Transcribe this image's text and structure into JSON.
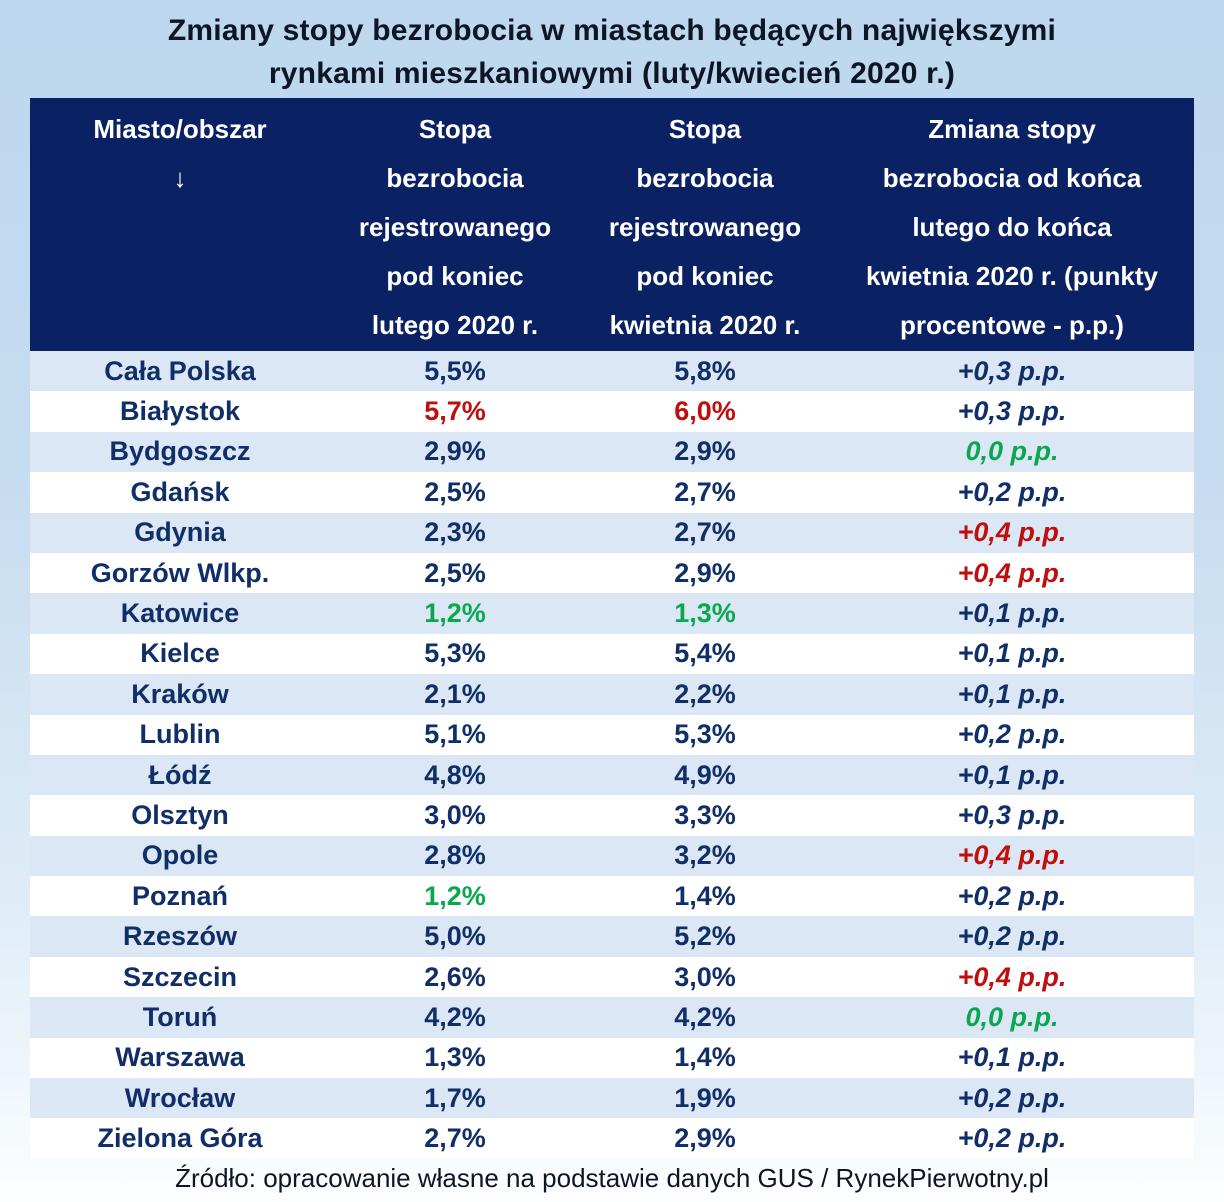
{
  "title": "Zmiany stopy bezrobocia w miastach będących największymi\nrynkami mieszkaniowymi (luty/kwiecień 2020 r.)",
  "header": {
    "city": "Miasto/obszar\n↓",
    "feb": "Stopa\nbezrobocia\nrejestrowanego\npod koniec\nlutego 2020 r.",
    "apr": "Stopa\nbezrobocia\nrejestrowanego\npod koniec\nkwietnia 2020 r.",
    "change": "Zmiana stopy\nbezrobocia od końca\nlutego do końca\nkwietnia 2020 r. (punkty\nprocentowe - p.p.)"
  },
  "colors": {
    "header_bg": "#0a2263",
    "stripe_row_bg": "#dbe7f4",
    "plain_row_bg": "#ffffff",
    "navy_text": "#102e68",
    "red_text": "#c00e0e",
    "green_text": "#0ba750",
    "page_bg_top": "#bdd7ee"
  },
  "chart_data": {
    "type": "table",
    "title": "Zmiany stopy bezrobocia w miastach będących największymi rynkami mieszkaniowymi (luty/kwiecień 2020 r.)",
    "columns": [
      "Miasto/obszar ↓",
      "Stopa bezrobocia rejestrowanego pod koniec lutego 2020 r.",
      "Stopa bezrobocia rejestrowanego pod koniec kwietnia 2020 r.",
      "Zmiana stopy bezrobocia od końca lutego do końca kwietnia 2020 r. (punkty procentowe - p.p.)"
    ],
    "rows": [
      {
        "city": "Cała Polska",
        "feb": "5,5%",
        "apr": "5,8%",
        "change": "+0,3 p.p.",
        "feb_color": "navy",
        "apr_color": "navy",
        "change_color": "navy"
      },
      {
        "city": "Białystok",
        "feb": "5,7%",
        "apr": "6,0%",
        "change": "+0,3 p.p.",
        "feb_color": "red",
        "apr_color": "red",
        "change_color": "navy"
      },
      {
        "city": "Bydgoszcz",
        "feb": "2,9%",
        "apr": "2,9%",
        "change": "0,0 p.p.",
        "feb_color": "navy",
        "apr_color": "navy",
        "change_color": "green"
      },
      {
        "city": "Gdańsk",
        "feb": "2,5%",
        "apr": "2,7%",
        "change": "+0,2 p.p.",
        "feb_color": "navy",
        "apr_color": "navy",
        "change_color": "navy"
      },
      {
        "city": "Gdynia",
        "feb": "2,3%",
        "apr": "2,7%",
        "change": "+0,4 p.p.",
        "feb_color": "navy",
        "apr_color": "navy",
        "change_color": "red"
      },
      {
        "city": "Gorzów Wlkp.",
        "feb": "2,5%",
        "apr": "2,9%",
        "change": "+0,4 p.p.",
        "feb_color": "navy",
        "apr_color": "navy",
        "change_color": "red"
      },
      {
        "city": "Katowice",
        "feb": "1,2%",
        "apr": "1,3%",
        "change": "+0,1 p.p.",
        "feb_color": "green",
        "apr_color": "green",
        "change_color": "navy"
      },
      {
        "city": "Kielce",
        "feb": "5,3%",
        "apr": "5,4%",
        "change": "+0,1 p.p.",
        "feb_color": "navy",
        "apr_color": "navy",
        "change_color": "navy"
      },
      {
        "city": "Kraków",
        "feb": "2,1%",
        "apr": "2,2%",
        "change": "+0,1 p.p.",
        "feb_color": "navy",
        "apr_color": "navy",
        "change_color": "navy"
      },
      {
        "city": "Lublin",
        "feb": "5,1%",
        "apr": "5,3%",
        "change": "+0,2 p.p.",
        "feb_color": "navy",
        "apr_color": "navy",
        "change_color": "navy"
      },
      {
        "city": "Łódź",
        "feb": "4,8%",
        "apr": "4,9%",
        "change": "+0,1 p.p.",
        "feb_color": "navy",
        "apr_color": "navy",
        "change_color": "navy"
      },
      {
        "city": "Olsztyn",
        "feb": "3,0%",
        "apr": "3,3%",
        "change": "+0,3 p.p.",
        "feb_color": "navy",
        "apr_color": "navy",
        "change_color": "navy"
      },
      {
        "city": "Opole",
        "feb": "2,8%",
        "apr": "3,2%",
        "change": "+0,4 p.p.",
        "feb_color": "navy",
        "apr_color": "navy",
        "change_color": "red"
      },
      {
        "city": "Poznań",
        "feb": "1,2%",
        "apr": "1,4%",
        "change": "+0,2 p.p.",
        "feb_color": "green",
        "apr_color": "navy",
        "change_color": "navy"
      },
      {
        "city": "Rzeszów",
        "feb": "5,0%",
        "apr": "5,2%",
        "change": "+0,2 p.p.",
        "feb_color": "navy",
        "apr_color": "navy",
        "change_color": "navy"
      },
      {
        "city": "Szczecin",
        "feb": "2,6%",
        "apr": "3,0%",
        "change": "+0,4 p.p.",
        "feb_color": "navy",
        "apr_color": "navy",
        "change_color": "red"
      },
      {
        "city": "Toruń",
        "feb": "4,2%",
        "apr": "4,2%",
        "change": "0,0 p.p.",
        "feb_color": "navy",
        "apr_color": "navy",
        "change_color": "green"
      },
      {
        "city": "Warszawa",
        "feb": "1,3%",
        "apr": "1,4%",
        "change": "+0,1 p.p.",
        "feb_color": "navy",
        "apr_color": "navy",
        "change_color": "navy"
      },
      {
        "city": "Wrocław",
        "feb": "1,7%",
        "apr": "1,9%",
        "change": "+0,2 p.p.",
        "feb_color": "navy",
        "apr_color": "navy",
        "change_color": "navy"
      },
      {
        "city": "Zielona Góra",
        "feb": "2,7%",
        "apr": "2,9%",
        "change": "+0,2 p.p.",
        "feb_color": "navy",
        "apr_color": "navy",
        "change_color": "navy"
      }
    ]
  },
  "footer": {
    "source": "Źródło: opracowanie własne na podstawie danych GUS / RynekPierwotny.pl"
  }
}
